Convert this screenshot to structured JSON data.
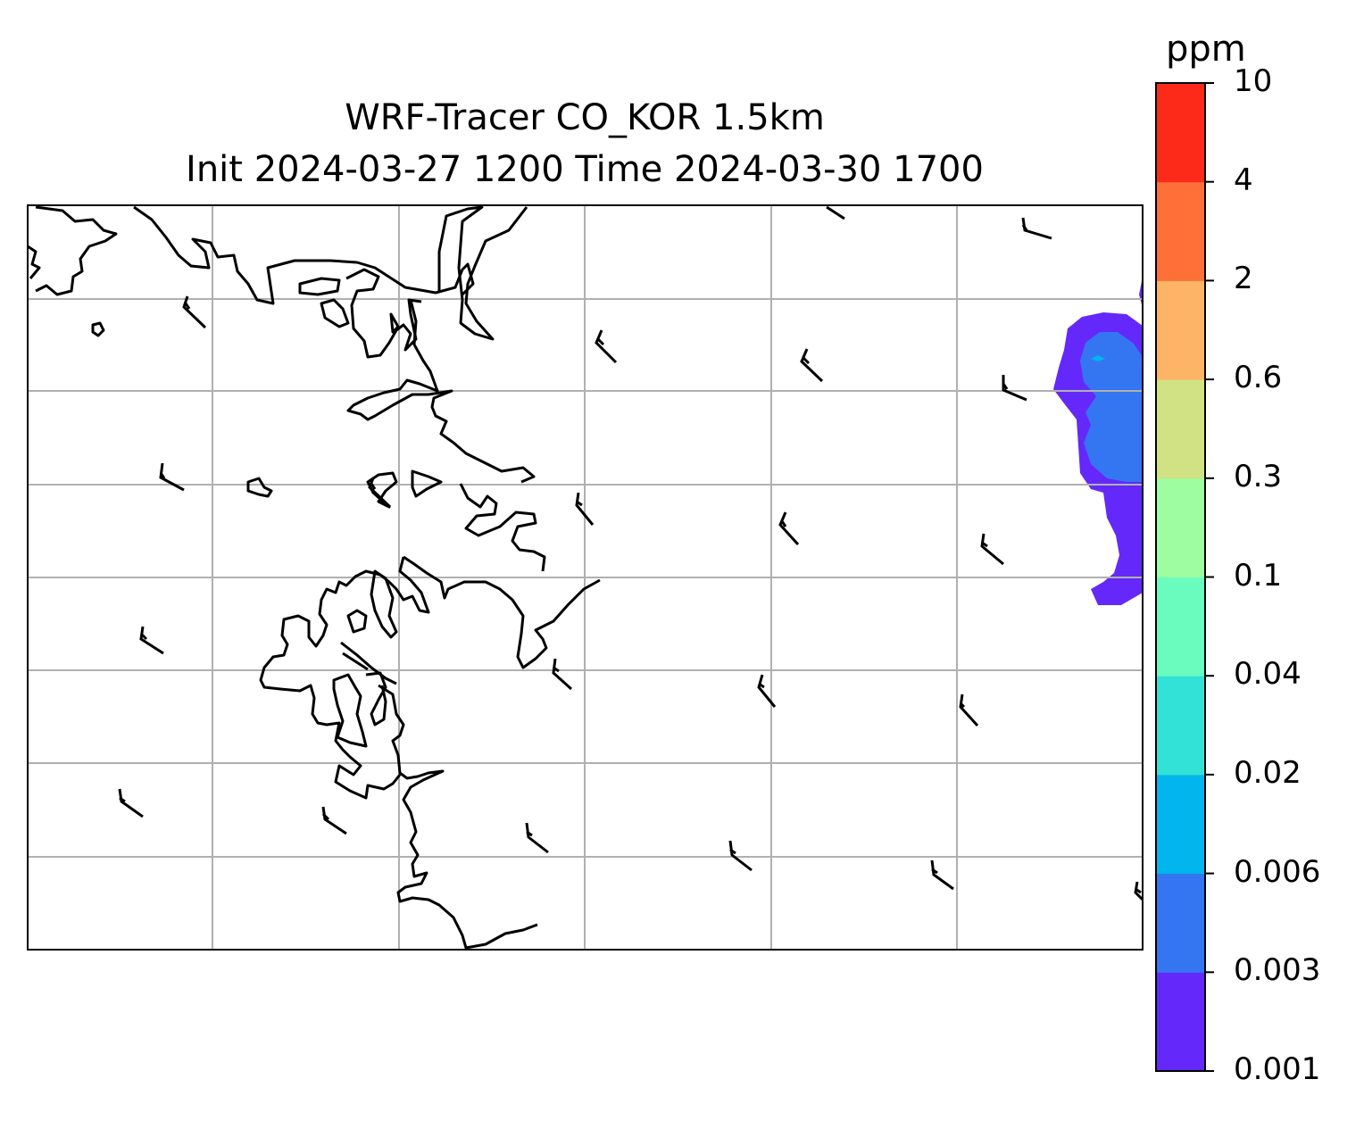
{
  "title": {
    "line1": "WRF-Tracer CO_KOR 1.5km",
    "line2": "Init 2024-03-27 1200 Time 2024-03-30 1700"
  },
  "colorbar": {
    "unit": "ppm",
    "levels": [
      "0.001",
      "0.003",
      "0.006",
      "0.02",
      "0.04",
      "0.1",
      "0.3",
      "0.6",
      "2",
      "4",
      "10"
    ],
    "colors": [
      "#6528fa",
      "#3476f2",
      "#02b5ec",
      "#33e2d7",
      "#6afbbf",
      "#9efda1",
      "#d0e284",
      "#fdb467",
      "#fe7038",
      "#fe2a19"
    ]
  },
  "map": {
    "gridlines": true,
    "coastline_color": "#000000",
    "grid_color": "#b0b0b0",
    "wind_barbs": true
  }
}
